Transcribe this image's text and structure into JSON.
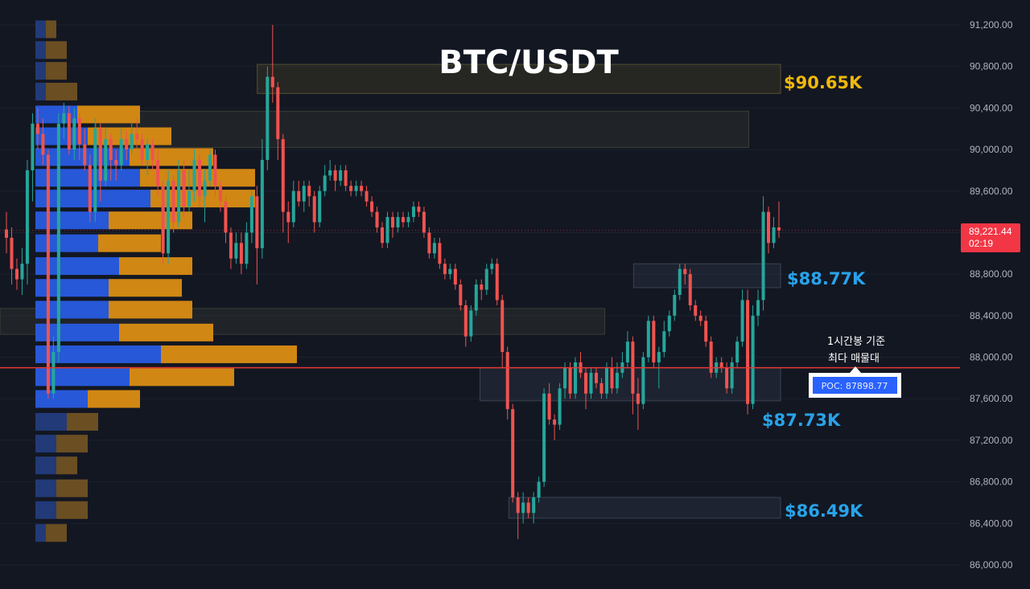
{
  "chart_data": {
    "type": "candlestick",
    "title": "BTC/USDT",
    "ylim": [
      85900,
      91350
    ],
    "y_ticks": [
      "91,200.00",
      "90,800.00",
      "90,400.00",
      "90,000.00",
      "89,600.00",
      "89,200.00",
      "88,800.00",
      "88,400.00",
      "88,000.00",
      "87,600.00",
      "87,200.00",
      "86,800.00",
      "86,400.00",
      "86,000.00"
    ],
    "current_price": {
      "label": "89,221.44",
      "countdown": "02:19",
      "value": 89221.44,
      "color": "#f23645"
    },
    "poc": {
      "label": "POC: 87898.77",
      "value": 87898.77
    },
    "annotation": {
      "line1": "1시간봉 기준",
      "line2": "최다 매물대"
    },
    "levels": [
      {
        "label": "$90.65K",
        "value": 90650,
        "color": "#f0b90b",
        "zone": [
          90540,
          90820
        ],
        "zone_from": 0.268
      },
      {
        "label": "$88.77K",
        "value": 88770,
        "color": "#2196f3",
        "zone": [
          88670,
          88900
        ],
        "zone_from": 0.66
      },
      {
        "label": "$87.73K",
        "value": 87730,
        "color": "#2196f3",
        "zone": [
          87580,
          87900
        ],
        "zone_from": 0.5
      },
      {
        "label": "$86.49K",
        "value": 86490,
        "color": "#2196f3",
        "zone": [
          86450,
          86650
        ],
        "zone_from": 0.53
      }
    ],
    "extra_zones": [
      {
        "range": [
          90020,
          90370
        ],
        "from": 0.1,
        "to": 0.78
      },
      {
        "range": [
          88220,
          88470
        ],
        "from": 0.0,
        "to": 0.63
      }
    ],
    "volume_profile": [
      [
        91150,
        1,
        1
      ],
      [
        90950,
        1,
        2
      ],
      [
        90750,
        1,
        2
      ],
      [
        90550,
        1,
        3
      ],
      [
        90330,
        4,
        6
      ],
      [
        90120,
        5,
        8
      ],
      [
        89920,
        9,
        8
      ],
      [
        89720,
        10,
        11
      ],
      [
        89520,
        11,
        10
      ],
      [
        89310,
        7,
        8
      ],
      [
        89090,
        6,
        6
      ],
      [
        88870,
        8,
        7
      ],
      [
        88660,
        7,
        7
      ],
      [
        88450,
        7,
        8
      ],
      [
        88230,
        8,
        9
      ],
      [
        88020,
        12,
        13
      ],
      [
        87800,
        9,
        10
      ],
      [
        87590,
        5,
        5
      ],
      [
        87370,
        3,
        3
      ],
      [
        87160,
        2,
        3
      ],
      [
        86950,
        2,
        2
      ],
      [
        86730,
        2,
        3
      ],
      [
        86520,
        2,
        3
      ],
      [
        86300,
        1,
        2
      ]
    ],
    "candles": [
      [
        89230,
        89150,
        89400,
        89000
      ],
      [
        89150,
        88850,
        89250,
        88700
      ],
      [
        88850,
        88750,
        88950,
        88650
      ],
      [
        88750,
        88900,
        89050,
        88600
      ],
      [
        88900,
        89800,
        89900,
        88700
      ],
      [
        89800,
        90250,
        90350,
        89500
      ],
      [
        90250,
        90150,
        90400,
        90000
      ],
      [
        90150,
        89950,
        90300,
        89850
      ],
      [
        89950,
        87650,
        90000,
        87600
      ],
      [
        87650,
        88050,
        88200,
        87600
      ],
      [
        88050,
        90250,
        90350,
        87950
      ],
      [
        90250,
        90350,
        90450,
        90100
      ],
      [
        90350,
        90000,
        90420,
        89950
      ],
      [
        90000,
        90300,
        90400,
        89900
      ],
      [
        90300,
        90050,
        90350,
        89900
      ],
      [
        90050,
        89850,
        90200,
        89800
      ],
      [
        89850,
        89400,
        89950,
        89300
      ],
      [
        89400,
        90200,
        90300,
        89300
      ],
      [
        90200,
        89700,
        90250,
        89500
      ],
      [
        89700,
        90100,
        90200,
        89650
      ],
      [
        90100,
        89900,
        90150,
        89700
      ],
      [
        89900,
        89850,
        90000,
        89700
      ],
      [
        89850,
        90100,
        90200,
        89800
      ],
      [
        90100,
        90000,
        90180,
        89900
      ],
      [
        90000,
        90150,
        90250,
        89950
      ],
      [
        90150,
        90100,
        90300,
        90000
      ],
      [
        90100,
        89900,
        90150,
        89850
      ],
      [
        89900,
        90050,
        90100,
        89750
      ],
      [
        90050,
        89900,
        90100,
        89800
      ],
      [
        89900,
        89650,
        90000,
        89550
      ],
      [
        89650,
        89000,
        89700,
        88900
      ],
      [
        89000,
        89700,
        89800,
        88900
      ],
      [
        89700,
        89300,
        89750,
        89200
      ],
      [
        89300,
        89800,
        89900,
        89250
      ],
      [
        89800,
        89450,
        89900,
        89350
      ],
      [
        89450,
        89600,
        89800,
        89400
      ],
      [
        89600,
        89900,
        90000,
        89500
      ],
      [
        89900,
        89550,
        89950,
        89450
      ],
      [
        89550,
        89700,
        89800,
        89300
      ],
      [
        89700,
        89950,
        90000,
        89650
      ],
      [
        89950,
        89650,
        90000,
        89550
      ],
      [
        89650,
        89500,
        89700,
        89400
      ],
      [
        89500,
        89200,
        89550,
        89100
      ],
      [
        89200,
        88950,
        89250,
        88850
      ],
      [
        88950,
        89100,
        89200,
        88900
      ],
      [
        89100,
        88900,
        89200,
        88800
      ],
      [
        88900,
        89200,
        89300,
        88850
      ],
      [
        89200,
        89550,
        89600,
        89100
      ],
      [
        89550,
        89050,
        89650,
        88700
      ],
      [
        89050,
        89900,
        90100,
        88950
      ],
      [
        89900,
        90700,
        90800,
        89800
      ],
      [
        90700,
        90600,
        91200,
        90450
      ],
      [
        90600,
        90100,
        90650,
        89900
      ],
      [
        90100,
        89400,
        90150,
        89200
      ],
      [
        89400,
        89300,
        89500,
        89100
      ],
      [
        89300,
        89600,
        89700,
        89250
      ],
      [
        89600,
        89500,
        89700,
        89450
      ],
      [
        89500,
        89650,
        89700,
        89400
      ],
      [
        89650,
        89550,
        89700,
        89450
      ],
      [
        89550,
        89300,
        89600,
        89200
      ],
      [
        89300,
        89600,
        89650,
        89250
      ],
      [
        89600,
        89750,
        89850,
        89550
      ],
      [
        89750,
        89800,
        89900,
        89700
      ],
      [
        89800,
        89700,
        89850,
        89600
      ],
      [
        89700,
        89800,
        89850,
        89650
      ],
      [
        89800,
        89650,
        89850,
        89600
      ],
      [
        89650,
        89600,
        89700,
        89550
      ],
      [
        89600,
        89650,
        89700,
        89550
      ],
      [
        89650,
        89600,
        89700,
        89550
      ],
      [
        89600,
        89500,
        89650,
        89450
      ],
      [
        89500,
        89400,
        89550,
        89350
      ],
      [
        89400,
        89250,
        89450,
        89200
      ],
      [
        89250,
        89100,
        89300,
        89050
      ],
      [
        89100,
        89350,
        89400,
        89050
      ],
      [
        89350,
        89250,
        89400,
        89150
      ],
      [
        89250,
        89350,
        89400,
        89200
      ],
      [
        89350,
        89300,
        89400,
        89250
      ],
      [
        89300,
        89350,
        89400,
        89250
      ],
      [
        89350,
        89450,
        89500,
        89300
      ],
      [
        89450,
        89400,
        89500,
        89350
      ],
      [
        89400,
        89200,
        89450,
        89150
      ],
      [
        89200,
        89000,
        89250,
        88950
      ],
      [
        89000,
        89100,
        89150,
        88950
      ],
      [
        89100,
        88900,
        89150,
        88850
      ],
      [
        88900,
        88800,
        88950,
        88750
      ],
      [
        88800,
        88850,
        88900,
        88750
      ],
      [
        88850,
        88700,
        88900,
        88650
      ],
      [
        88700,
        88500,
        88750,
        88450
      ],
      [
        88500,
        88200,
        88550,
        88100
      ],
      [
        88200,
        88450,
        88500,
        88150
      ],
      [
        88450,
        88700,
        88750,
        88400
      ],
      [
        88700,
        88650,
        88750,
        88550
      ],
      [
        88650,
        88850,
        88900,
        88600
      ],
      [
        88850,
        88900,
        88950,
        88800
      ],
      [
        88900,
        88550,
        88950,
        88500
      ],
      [
        88550,
        88050,
        88600,
        87900
      ],
      [
        88050,
        87500,
        88100,
        87400
      ],
      [
        87500,
        86650,
        87550,
        86600
      ],
      [
        86650,
        86500,
        86700,
        86250
      ],
      [
        86500,
        86600,
        86700,
        86400
      ],
      [
        86600,
        86500,
        86650,
        86450
      ],
      [
        86500,
        86650,
        86700,
        86400
      ],
      [
        86650,
        86800,
        86850,
        86600
      ],
      [
        86800,
        87650,
        87700,
        86750
      ],
      [
        87650,
        87400,
        87750,
        87350
      ],
      [
        87400,
        87350,
        87450,
        87200
      ],
      [
        87350,
        87700,
        87750,
        87300
      ],
      [
        87700,
        87900,
        87950,
        87600
      ],
      [
        87900,
        87650,
        87950,
        87600
      ],
      [
        87650,
        87950,
        88000,
        87600
      ],
      [
        87950,
        87850,
        88050,
        87800
      ],
      [
        87850,
        87650,
        87900,
        87500
      ],
      [
        87650,
        87850,
        87900,
        87600
      ],
      [
        87850,
        87750,
        87900,
        87700
      ],
      [
        87750,
        87650,
        87800,
        87600
      ],
      [
        87650,
        87900,
        87950,
        87600
      ],
      [
        87900,
        87700,
        88000,
        87650
      ],
      [
        87700,
        87850,
        87950,
        87650
      ],
      [
        87850,
        87950,
        88050,
        87800
      ],
      [
        87950,
        88150,
        88250,
        87900
      ],
      [
        88150,
        87650,
        88200,
        87450
      ],
      [
        87650,
        87550,
        87800,
        87300
      ],
      [
        87550,
        88000,
        88050,
        87500
      ],
      [
        88000,
        88350,
        88400,
        87950
      ],
      [
        88350,
        87950,
        88400,
        87900
      ],
      [
        87950,
        88050,
        88100,
        87700
      ],
      [
        88050,
        88250,
        88350,
        88000
      ],
      [
        88250,
        88400,
        88450,
        88200
      ],
      [
        88400,
        88600,
        88650,
        88350
      ],
      [
        88600,
        88850,
        88900,
        88550
      ],
      [
        88850,
        88800,
        88900,
        88700
      ],
      [
        88800,
        88500,
        88850,
        88450
      ],
      [
        88500,
        88400,
        88550,
        88350
      ],
      [
        88400,
        88350,
        88450,
        88300
      ],
      [
        88350,
        88150,
        88400,
        88100
      ],
      [
        88150,
        87850,
        88200,
        87800
      ],
      [
        87850,
        87950,
        88000,
        87800
      ],
      [
        87950,
        87900,
        88000,
        87850
      ],
      [
        87900,
        87700,
        87950,
        87650
      ],
      [
        87700,
        87950,
        88000,
        87650
      ],
      [
        87950,
        88150,
        88200,
        87900
      ],
      [
        88150,
        88550,
        88650,
        88100
      ],
      [
        88550,
        87550,
        88650,
        87450
      ],
      [
        87550,
        88400,
        88500,
        87500
      ],
      [
        88400,
        88550,
        88650,
        88300
      ],
      [
        88550,
        89400,
        89550,
        88450
      ],
      [
        89400,
        89100,
        89450,
        89000
      ],
      [
        89100,
        89250,
        89350,
        89050
      ],
      [
        89250,
        89221,
        89500,
        89150
      ]
    ]
  }
}
